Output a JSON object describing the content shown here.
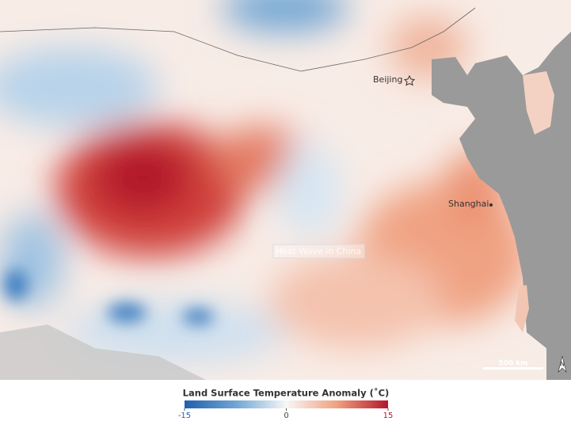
{
  "map": {
    "labels": [
      {
        "text": "Beijing"
      },
      {
        "text": "Shanghai"
      }
    ],
    "watermark": "Heat Wave in China",
    "scale_bar": "500 km",
    "north": "N"
  },
  "legend": {
    "title": "Land Surface Temperature Anomaly (˚C)",
    "min": -15,
    "max": 15,
    "ticks": [
      -15,
      0,
      15
    ],
    "colors": [
      "#1f5fae",
      "#6fa5d4",
      "#f7f7f7",
      "#f0a07f",
      "#b2182b"
    ]
  }
}
